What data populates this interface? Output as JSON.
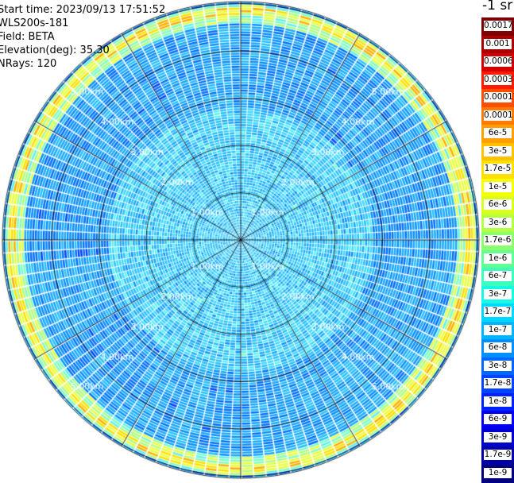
{
  "header": {
    "start_time": "Start time: 2023/09/13 17:51:52",
    "instrument": "WLS200s-181",
    "field": "Field: BETA",
    "elevation": "Elevation(deg): 35.30",
    "nrays": "NRays: 120"
  },
  "colorbar": {
    "unit_label": "-1 sr",
    "labels": [
      "0.0017",
      "0.001",
      "0.0006",
      "0.0003",
      "0.00017",
      "0.0001",
      "6e-5",
      "3e-5",
      "1.7e-5",
      "1e-5",
      "6e-6",
      "3e-6",
      "1.7e-6",
      "1e-6",
      "6e-7",
      "3e-7",
      "1.7e-7",
      "1e-7",
      "6e-8",
      "3e-8",
      "1.7e-8",
      "1e-8",
      "6e-9",
      "3e-9",
      "1.7e-9",
      "1e-9"
    ],
    "colors": [
      "#7f0000",
      "#aa0000",
      "#d40000",
      "#ff1a00",
      "#ff4d00",
      "#ff7b00",
      "#ffa000",
      "#ffc200",
      "#ffe000",
      "#f7ff00",
      "#d9ff1f",
      "#b4ff44",
      "#8cff6c",
      "#63ff95",
      "#3cffbe",
      "#14fbe5",
      "#00d8ff",
      "#00b4ff",
      "#008fff",
      "#0068ff",
      "#0044ff",
      "#0022ff",
      "#0000f2",
      "#0000cc",
      "#0000a6",
      "#000080"
    ]
  },
  "range_rings": {
    "labels": [
      "1.00km",
      "2.00km",
      "3.00km",
      "4.00km",
      "5.00km"
    ]
  },
  "chart_data": {
    "type": "heatmap",
    "projection": "polar",
    "field": "BETA",
    "elevation_deg": 35.3,
    "n_rays": 120,
    "range_rings_km": [
      1,
      2,
      3,
      4,
      5
    ],
    "value_scale": "log",
    "value_range": [
      1e-09,
      0.0017
    ],
    "dominant_values": "mostly 1e-8 to 1e-7 with a ring of 1e-6 to 3e-5 near the outer edge"
  }
}
